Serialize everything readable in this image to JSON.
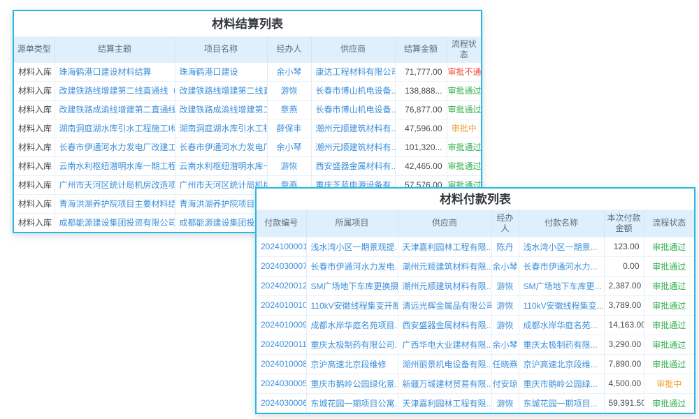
{
  "colors": {
    "border": "#29b8e2",
    "header_bg": "#dff0fc",
    "header_text": "#5b6b7c",
    "link_text": "#3d8fdb",
    "body_text": "#45484d",
    "status": {
      "approved": "#2fae4c",
      "rejected": "#f4453a",
      "pending": "#f0a032"
    }
  },
  "settlement_table": {
    "title": "材料结算列表",
    "columns": [
      "源单类型",
      "结算主题",
      "项目名称",
      "经办人",
      "供应商",
      "结算金额",
      "流程状态"
    ],
    "rows": [
      {
        "type": "材料入库",
        "subject": "珠海鹤港口建设材料结算",
        "project": "珠海鹤港口建设",
        "handler": "余小琴",
        "supplier": "康达工程材料有限公司",
        "amount": "71,777.00",
        "status": "审批不通过",
        "state": "rejected"
      },
      {
        "type": "材料入库",
        "subject": "改建铁路线增建第二线直通线（成...",
        "project": "改建铁路线增建第二线直...",
        "handler": "游恢",
        "supplier": "长春市博山机电设备...",
        "amount": "138,888...",
        "status": "审批通过",
        "state": "approved"
      },
      {
        "type": "材料入库",
        "subject": "改建铁路成渝线增建第二直通线（...",
        "project": "改建铁路成渝线增建第二...",
        "handler": "章燕",
        "supplier": "长春市博山机电设备...",
        "amount": "76,877.00",
        "status": "审批通过",
        "state": "approved"
      },
      {
        "type": "材料入库",
        "subject": "湖南洞庭湖水库引水工程施工I标材...",
        "project": "湖南洞庭湖水库引水工程...",
        "handler": "薛保丰",
        "supplier": "潮州元顺建筑材料有...",
        "amount": "47,596.00",
        "status": "审批中",
        "state": "pending"
      },
      {
        "type": "材料入库",
        "subject": "长春市伊通河水力发电厂改建工程...",
        "project": "长春市伊通河水力发电厂...",
        "handler": "余小琴",
        "supplier": "潮州元顺建筑材料有...",
        "amount": "101,320...",
        "status": "审批通过",
        "state": "approved"
      },
      {
        "type": "材料入库",
        "subject": "云南水利枢纽潜明水库一期工程施...",
        "project": "云南水利枢纽潜明水库一...",
        "handler": "游恢",
        "supplier": "西安盛器金属材料有...",
        "amount": "42,465.00",
        "status": "审批通过",
        "state": "approved"
      },
      {
        "type": "材料入库",
        "subject": "广州市天河区统计局机房改造项目...",
        "project": "广州市天河区统计局机房...",
        "handler": "章燕",
        "supplier": "重庆芝蓝电源设备有...",
        "amount": "57,576.00",
        "status": "审批通过",
        "state": "approved"
      },
      {
        "type": "材料入库",
        "subject": "青海洪湖养护院项目主要材料结算",
        "project": "青海洪湖养护院项目",
        "handler": "",
        "supplier": "",
        "amount": "",
        "status": "",
        "state": ""
      },
      {
        "type": "材料入库",
        "subject": "成都能源建设集团投资有限公司临...",
        "project": "成都能源建设集团投资有...",
        "handler": "",
        "supplier": "",
        "amount": "",
        "status": "",
        "state": ""
      }
    ]
  },
  "payment_table": {
    "title": "材料付款列表",
    "columns": [
      "付款编号",
      "所属项目",
      "供应商",
      "经办人",
      "付款名称",
      "本次付款金额",
      "流程状态"
    ],
    "rows": [
      {
        "no": "2024100001",
        "project": "浅水湾小区一期景观提...",
        "supplier": "天津嘉利园林工程有限...",
        "handler": "陈丹",
        "name": "浅水湾小区一期景...",
        "amount": "123.00",
        "status": "审批通过",
        "state": "approved"
      },
      {
        "no": "2024030007",
        "project": "长春市伊通河水力发电...",
        "supplier": "潮州元顺建筑材料有限...",
        "handler": "余小琴",
        "name": "长春市伊通河水力...",
        "amount": "0.00",
        "status": "审批通过",
        "state": "approved"
      },
      {
        "no": "2024020012",
        "project": "SM广场地下车库更换摄...",
        "supplier": "潮州元顺建筑材料有限...",
        "handler": "游恢",
        "name": "SM广场地下车库更...",
        "amount": "2,387.00",
        "status": "审批通过",
        "state": "approved"
      },
      {
        "no": "2024010010",
        "project": "110kV安徽线程集变开断...",
        "supplier": "清远光辉金属品有限公司",
        "handler": "游恢",
        "name": "110kV安徽线程集变...",
        "amount": "3,789.00",
        "status": "审批通过",
        "state": "approved"
      },
      {
        "no": "2024010009",
        "project": "成都水岸华庭名苑项目...",
        "supplier": "西安盛器金属材料有限...",
        "handler": "游恢",
        "name": "成都水岸华庭名苑...",
        "amount": "14,163.00",
        "status": "审批通过",
        "state": "approved"
      },
      {
        "no": "2024020011",
        "project": "重庆太极制药有限公司...",
        "supplier": "广西华电大业建材有限...",
        "handler": "余小琴",
        "name": "重庆太极制药有限...",
        "amount": "3,290.00",
        "status": "审批通过",
        "state": "approved"
      },
      {
        "no": "2024010008",
        "project": "京沪高速北京段维修",
        "supplier": "湖州丽景机电设备有限...",
        "handler": "任晓燕",
        "name": "京沪高速北京段维...",
        "amount": "7,890.00",
        "status": "审批通过",
        "state": "approved"
      },
      {
        "no": "2024030005",
        "project": "重庆市鹅岭公园绿化景...",
        "supplier": "新疆万城建材贸易有限...",
        "handler": "付安琼",
        "name": "重庆市鹅岭公园绿...",
        "amount": "4,500.00",
        "status": "审批中",
        "state": "pending"
      },
      {
        "no": "2024030006",
        "project": "东城花园一期项目公寓...",
        "supplier": "天津嘉利园林工程有限...",
        "handler": "游恢",
        "name": "东城花园一期项目...",
        "amount": "59,391.50",
        "status": "审批通过",
        "state": "approved"
      }
    ]
  }
}
